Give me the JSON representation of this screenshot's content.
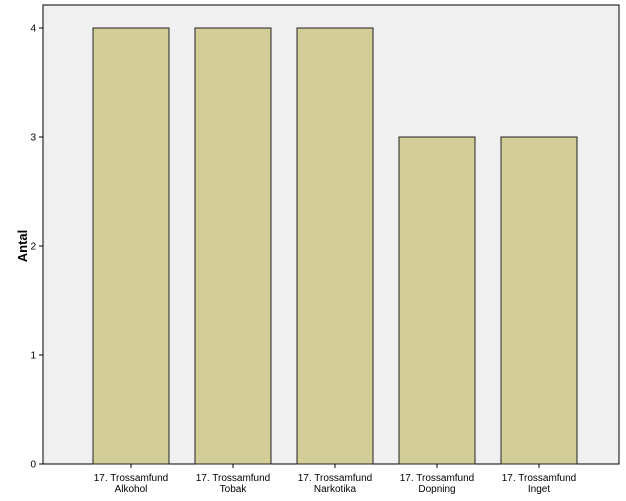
{
  "chart_data": {
    "type": "bar",
    "title": "",
    "xlabel": "",
    "ylabel": "Antal",
    "ylim": [
      0,
      4
    ],
    "yticks": [
      "0",
      "1",
      "2",
      "3",
      "4"
    ],
    "categories": [
      [
        "17. Trossamfund",
        "Alkohol"
      ],
      [
        "17. Trossamfund",
        "Tobak"
      ],
      [
        "17. Trossamfund",
        "Narkotika"
      ],
      [
        "17. Trossamfund",
        "Dopning"
      ],
      [
        "17. Trossamfund",
        "Inget"
      ]
    ],
    "values": [
      4,
      4,
      4,
      3,
      3
    ],
    "grid": false,
    "legend": "none",
    "colors": {
      "plot_background": "#f0f0f0",
      "bar_fill": "#d3ce98",
      "bar_stroke": "#222222",
      "axis": "#000000"
    }
  }
}
